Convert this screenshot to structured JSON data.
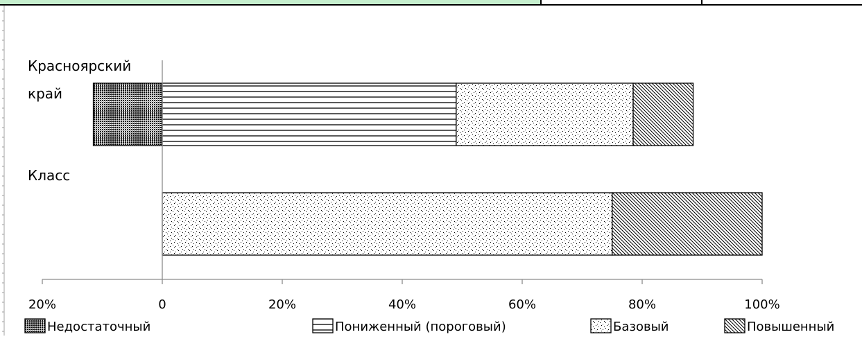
{
  "header_cells": [
    {
      "fill": "#c6efce"
    },
    {
      "fill": "#ffffff"
    },
    {
      "fill": "#ffffff"
    }
  ],
  "chart_data": {
    "type": "bar",
    "orientation": "horizontal",
    "stacked": true,
    "categories": [
      "Красноярский край",
      "Класс"
    ],
    "category_label_lines": [
      [
        "Красноярский",
        "край"
      ],
      [
        "Класс"
      ]
    ],
    "series": [
      {
        "name": "Недостаточный",
        "pattern": "dense-dots",
        "negative": true,
        "values": [
          11.5,
          0
        ]
      },
      {
        "name": "Пониженный (пороговый)",
        "pattern": "horizontal-lines",
        "values": [
          49,
          0
        ]
      },
      {
        "name": "Базовый",
        "pattern": "sparse-dots",
        "values": [
          29.5,
          75
        ]
      },
      {
        "name": "Повышенный",
        "pattern": "diagonal-lines",
        "values": [
          10,
          25
        ]
      }
    ],
    "xlim": [
      -20,
      100
    ],
    "xticks": [
      -20,
      0,
      20,
      40,
      60,
      80,
      100
    ],
    "tick_labels": [
      "20%",
      "0",
      "20%",
      "40%",
      "60%",
      "80%",
      "100%"
    ],
    "gridlines": false,
    "legend_position": "bottom",
    "colors": {
      "stroke": "#000000",
      "axis": "#8c8c8c",
      "background": "#ffffff"
    }
  }
}
